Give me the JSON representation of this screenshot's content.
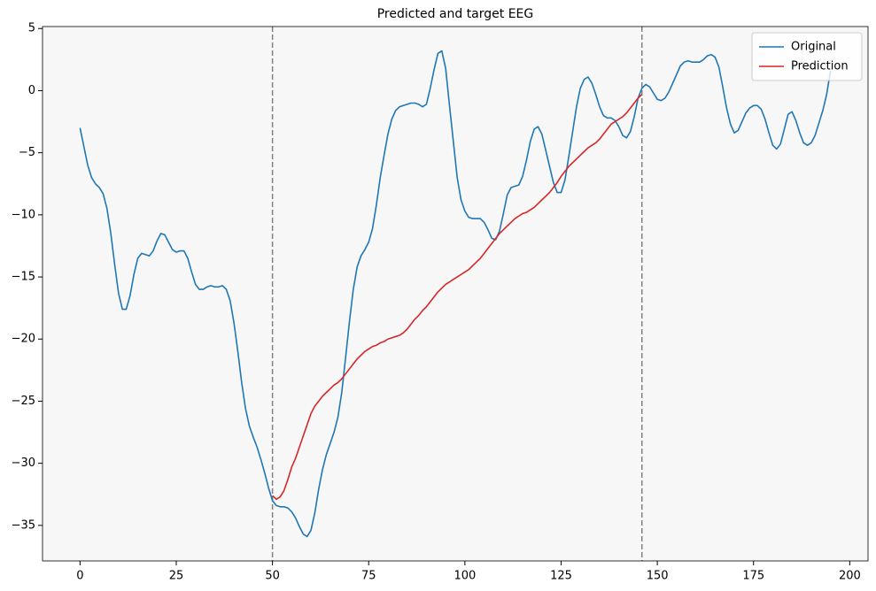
{
  "chart_data": {
    "type": "line",
    "title": "Predicted and target EEG",
    "xlim": [
      -9.75,
      204.75
    ],
    "ylim": [
      -37.86,
      5.16
    ],
    "xticks": [
      0,
      25,
      50,
      75,
      100,
      125,
      150,
      175,
      200
    ],
    "yticks": [
      5,
      0,
      {
        "value": -5,
        "label": "−5"
      },
      {
        "value": -10,
        "label": "−10"
      },
      {
        "value": -15,
        "label": "−15"
      },
      {
        "value": -20,
        "label": "−20"
      },
      {
        "value": -25,
        "label": "−25"
      },
      {
        "value": -30,
        "label": "−30"
      },
      {
        "value": -35,
        "label": "−35"
      }
    ],
    "vlines": [
      50,
      146
    ],
    "vline_color": "#808080",
    "background": "#f7f7f7",
    "legend": "upper right",
    "series": [
      {
        "name": "Original",
        "color": "#1f77b4",
        "x": [
          0,
          1,
          2,
          3,
          4,
          5,
          6,
          7,
          8,
          9,
          10,
          11,
          12,
          13,
          14,
          15,
          16,
          17,
          18,
          19,
          20,
          21,
          22,
          23,
          24,
          25,
          26,
          27,
          28,
          29,
          30,
          31,
          32,
          33,
          34,
          35,
          36,
          37,
          38,
          39,
          40,
          41,
          42,
          43,
          44,
          45,
          46,
          47,
          48,
          49,
          50,
          51,
          52,
          53,
          54,
          55,
          56,
          57,
          58,
          59,
          60,
          61,
          62,
          63,
          64,
          65,
          66,
          67,
          68,
          69,
          70,
          71,
          72,
          73,
          74,
          75,
          76,
          77,
          78,
          79,
          80,
          81,
          82,
          83,
          84,
          85,
          86,
          87,
          88,
          89,
          90,
          91,
          92,
          93,
          94,
          95,
          96,
          97,
          98,
          99,
          100,
          101,
          102,
          103,
          104,
          105,
          106,
          107,
          108,
          109,
          110,
          111,
          112,
          113,
          114,
          115,
          116,
          117,
          118,
          119,
          120,
          121,
          122,
          123,
          124,
          125,
          126,
          127,
          128,
          129,
          130,
          131,
          132,
          133,
          134,
          135,
          136,
          137,
          138,
          139,
          140,
          141,
          142,
          143,
          144,
          145,
          146,
          147,
          148,
          149,
          150,
          151,
          152,
          153,
          154,
          155,
          156,
          157,
          158,
          159,
          160,
          161,
          162,
          163,
          164,
          165,
          166,
          167,
          168,
          169,
          170,
          171,
          172,
          173,
          174,
          175,
          176,
          177,
          178,
          179,
          180,
          181,
          182,
          183,
          184,
          185,
          186,
          187,
          188,
          189,
          190,
          191,
          192,
          193,
          194,
          195
        ],
        "values": [
          -3,
          -4.5,
          -6,
          -7,
          -7.5,
          -7.8,
          -8.3,
          -9.5,
          -11.5,
          -14,
          -16.3,
          -17.6,
          -17.6,
          -16.5,
          -14.8,
          -13.5,
          -13.1,
          -13.2,
          -13.3,
          -12.9,
          -12.1,
          -11.5,
          -11.6,
          -12.2,
          -12.8,
          -13,
          -12.9,
          -12.9,
          -13.5,
          -14.6,
          -15.6,
          -16,
          -16,
          -15.8,
          -15.7,
          -15.8,
          -15.8,
          -15.7,
          -16,
          -16.9,
          -18.7,
          -21,
          -23.5,
          -25.6,
          -27,
          -27.9,
          -28.7,
          -29.7,
          -30.8,
          -32,
          -33,
          -33.4,
          -33.5,
          -33.5,
          -33.6,
          -33.9,
          -34.4,
          -35.1,
          -35.7,
          -35.9,
          -35.4,
          -34,
          -32.1,
          -30.5,
          -29.3,
          -28.4,
          -27.5,
          -26.3,
          -24.3,
          -21.5,
          -18.6,
          -16,
          -14.2,
          -13.3,
          -12.8,
          -12.2,
          -11.1,
          -9.2,
          -7,
          -5.2,
          -3.5,
          -2.3,
          -1.6,
          -1.3,
          -1.2,
          -1.1,
          -1,
          -1,
          -1.1,
          -1.3,
          -1.1,
          0.2,
          1.7,
          3,
          3.2,
          1.8,
          -1.2,
          -4.1,
          -7,
          -8.8,
          -9.7,
          -10.2,
          -10.3,
          -10.3,
          -10.3,
          -10.6,
          -11.2,
          -11.9,
          -12,
          -11.3,
          -9.9,
          -8.4,
          -7.8,
          -7.7,
          -7.6,
          -6.9,
          -5.6,
          -4.1,
          -3.1,
          -2.9,
          -3.5,
          -4.8,
          -6.1,
          -7.4,
          -8.2,
          -8.2,
          -7.2,
          -5.3,
          -3.3,
          -1.3,
          0.2,
          0.9,
          1.1,
          0.6,
          -0.3,
          -1.3,
          -2,
          -2.2,
          -2.2,
          -2.4,
          -2.9,
          -3.6,
          -3.8,
          -3.3,
          -2.1,
          -0.6,
          0.2,
          0.5,
          0.3,
          -0.2,
          -0.7,
          -0.8,
          -0.6,
          -0.1,
          0.6,
          1.3,
          2,
          2.3,
          2.4,
          2.3,
          2.3,
          2.3,
          2.5,
          2.8,
          2.9,
          2.7,
          1.9,
          0.3,
          -1.4,
          -2.7,
          -3.4,
          -3.2,
          -2.5,
          -1.8,
          -1.4,
          -1.2,
          -1.2,
          -1.5,
          -2.3,
          -3.4,
          -4.4,
          -4.7,
          -4.3,
          -3.1,
          -1.9,
          -1.7,
          -2.4,
          -3.4,
          -4.2,
          -4.4,
          -4.2,
          -3.6,
          -2.6,
          -1.6,
          -0.3,
          1.6
        ]
      },
      {
        "name": "Prediction",
        "color": "#d62728",
        "x": [
          50,
          51,
          52,
          53,
          54,
          55,
          56,
          57,
          58,
          59,
          60,
          61,
          62,
          63,
          64,
          65,
          66,
          67,
          68,
          69,
          70,
          71,
          72,
          73,
          74,
          75,
          76,
          77,
          78,
          79,
          80,
          81,
          82,
          83,
          84,
          85,
          86,
          87,
          88,
          89,
          90,
          91,
          92,
          93,
          94,
          95,
          96,
          97,
          98,
          99,
          100,
          101,
          102,
          103,
          104,
          105,
          106,
          107,
          108,
          109,
          110,
          111,
          112,
          113,
          114,
          115,
          116,
          117,
          118,
          119,
          120,
          121,
          122,
          123,
          124,
          125,
          126,
          127,
          128,
          129,
          130,
          131,
          132,
          133,
          134,
          135,
          136,
          137,
          138,
          139,
          140,
          141,
          142,
          143,
          144,
          145,
          146
        ],
        "values": [
          -32.6,
          -32.9,
          -32.7,
          -32.2,
          -31.3,
          -30.3,
          -29.6,
          -28.7,
          -27.8,
          -26.9,
          -26,
          -25.4,
          -25,
          -24.6,
          -24.3,
          -24,
          -23.7,
          -23.5,
          -23.2,
          -22.8,
          -22.4,
          -22,
          -21.6,
          -21.3,
          -21,
          -20.8,
          -20.6,
          -20.5,
          -20.3,
          -20.2,
          -20,
          -19.9,
          -19.8,
          -19.7,
          -19.5,
          -19.2,
          -18.8,
          -18.4,
          -18.1,
          -17.7,
          -17.4,
          -17,
          -16.6,
          -16.2,
          -15.9,
          -15.6,
          -15.4,
          -15.2,
          -15,
          -14.8,
          -14.6,
          -14.4,
          -14.1,
          -13.8,
          -13.5,
          -13.1,
          -12.7,
          -12.3,
          -11.9,
          -11.5,
          -11.2,
          -10.9,
          -10.6,
          -10.3,
          -10.1,
          -9.9,
          -9.8,
          -9.6,
          -9.4,
          -9.1,
          -8.8,
          -8.5,
          -8.2,
          -7.8,
          -7.4,
          -6.9,
          -6.5,
          -6.1,
          -5.8,
          -5.5,
          -5.2,
          -4.9,
          -4.6,
          -4.4,
          -4.2,
          -3.9,
          -3.5,
          -3.1,
          -2.7,
          -2.5,
          -2.3,
          -2.1,
          -1.8,
          -1.4,
          -1,
          -0.6,
          -0.3
        ]
      }
    ]
  }
}
